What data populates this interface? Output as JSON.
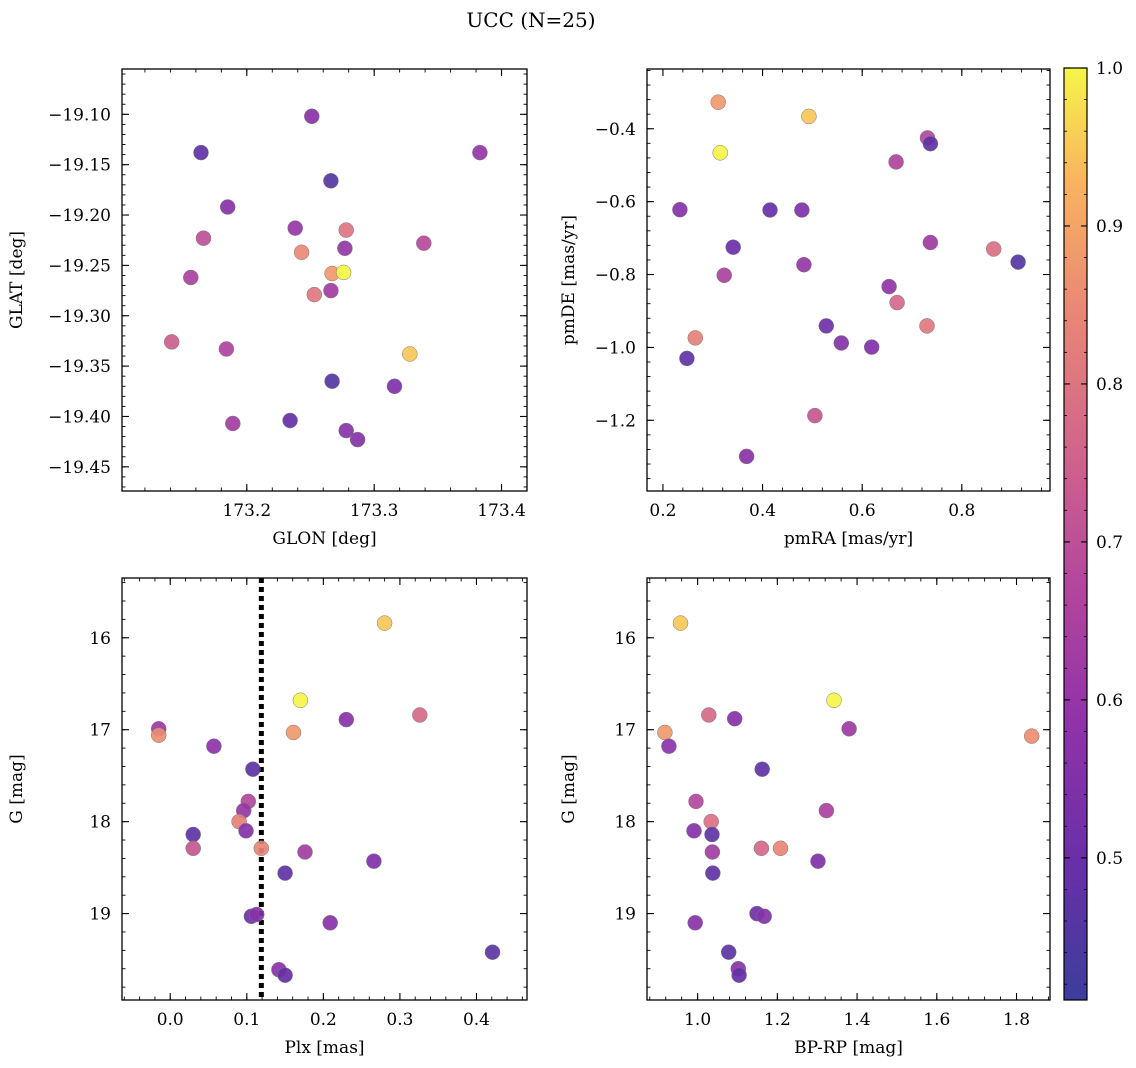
{
  "figure_title": "UCC (N=25)",
  "colorbar": {
    "ticks": [
      0.5,
      0.6,
      0.7,
      0.8,
      0.9,
      1.0
    ],
    "tick_labels": [
      "0.5",
      "0.6",
      "0.7",
      "0.8",
      "0.9",
      "1.0"
    ],
    "range": [
      0.41,
      1.0
    ],
    "colormap": "plasma"
  },
  "chart_data": [
    {
      "type": "scatter",
      "panel": "top-left",
      "xlabel": "GLON [deg]",
      "ylabel": "GLAT [deg]",
      "xlim": [
        173.102,
        173.42
      ],
      "ylim": [
        -19.474,
        -19.055
      ],
      "xticks": [
        173.2,
        173.3,
        173.4
      ],
      "xtick_labels": [
        "173.2",
        "173.3",
        "173.4"
      ],
      "yticks": [
        -19.1,
        -19.15,
        -19.2,
        -19.25,
        -19.3,
        -19.35,
        -19.4,
        -19.45
      ],
      "ytick_labels": [
        "−19.10",
        "−19.15",
        "−19.20",
        "−19.25",
        "−19.30",
        "−19.35",
        "−19.40",
        "−19.45"
      ],
      "points": [
        {
          "x": 173.251,
          "y": -19.102,
          "c": 0.57
        },
        {
          "x": 173.164,
          "y": -19.138,
          "c": 0.48
        },
        {
          "x": 173.383,
          "y": -19.138,
          "c": 0.6
        },
        {
          "x": 173.266,
          "y": -19.166,
          "c": 0.46
        },
        {
          "x": 173.185,
          "y": -19.192,
          "c": 0.57
        },
        {
          "x": 173.238,
          "y": -19.213,
          "c": 0.6
        },
        {
          "x": 173.278,
          "y": -19.215,
          "c": 0.8
        },
        {
          "x": 173.166,
          "y": -19.223,
          "c": 0.7
        },
        {
          "x": 173.339,
          "y": -19.228,
          "c": 0.68
        },
        {
          "x": 173.277,
          "y": -19.233,
          "c": 0.6
        },
        {
          "x": 173.243,
          "y": -19.237,
          "c": 0.85
        },
        {
          "x": 173.267,
          "y": -19.258,
          "c": 0.88
        },
        {
          "x": 173.276,
          "y": -19.257,
          "c": 1.0
        },
        {
          "x": 173.156,
          "y": -19.262,
          "c": 0.65
        },
        {
          "x": 173.253,
          "y": -19.279,
          "c": 0.81
        },
        {
          "x": 173.266,
          "y": -19.275,
          "c": 0.63
        },
        {
          "x": 173.141,
          "y": -19.326,
          "c": 0.74
        },
        {
          "x": 173.184,
          "y": -19.333,
          "c": 0.66
        },
        {
          "x": 173.328,
          "y": -19.338,
          "c": 0.95
        },
        {
          "x": 173.267,
          "y": -19.365,
          "c": 0.46
        },
        {
          "x": 173.316,
          "y": -19.37,
          "c": 0.55
        },
        {
          "x": 173.234,
          "y": -19.404,
          "c": 0.49
        },
        {
          "x": 173.189,
          "y": -19.407,
          "c": 0.63
        },
        {
          "x": 173.278,
          "y": -19.414,
          "c": 0.57
        },
        {
          "x": 173.287,
          "y": -19.423,
          "c": 0.56
        }
      ]
    },
    {
      "type": "scatter",
      "panel": "top-right",
      "xlabel": "pmRA [mas/yr]",
      "ylabel": "pmDE [mas/yr]",
      "xlim": [
        0.168,
        0.977
      ],
      "ylim": [
        -1.394,
        -0.236
      ],
      "xticks": [
        0.2,
        0.4,
        0.6,
        0.8
      ],
      "xtick_labels": [
        "0.2",
        "0.4",
        "0.6",
        "0.8"
      ],
      "yticks": [
        -0.4,
        -0.6,
        -0.8,
        -1.0,
        -1.2
      ],
      "ytick_labels": [
        "−0.4",
        "−0.6",
        "−0.8",
        "−1.0",
        "−1.2"
      ],
      "points": [
        {
          "x": 0.311,
          "y": -0.327,
          "c": 0.88
        },
        {
          "x": 0.493,
          "y": -0.366,
          "c": 0.95
        },
        {
          "x": 0.315,
          "y": -0.466,
          "c": 1.0
        },
        {
          "x": 0.731,
          "y": -0.425,
          "c": 0.67
        },
        {
          "x": 0.737,
          "y": -0.441,
          "c": 0.48
        },
        {
          "x": 0.668,
          "y": -0.491,
          "c": 0.66
        },
        {
          "x": 0.234,
          "y": -0.622,
          "c": 0.56
        },
        {
          "x": 0.415,
          "y": -0.623,
          "c": 0.49
        },
        {
          "x": 0.479,
          "y": -0.623,
          "c": 0.55
        },
        {
          "x": 0.341,
          "y": -0.725,
          "c": 0.5
        },
        {
          "x": 0.737,
          "y": -0.712,
          "c": 0.62
        },
        {
          "x": 0.864,
          "y": -0.73,
          "c": 0.79
        },
        {
          "x": 0.913,
          "y": -0.766,
          "c": 0.46
        },
        {
          "x": 0.483,
          "y": -0.773,
          "c": 0.6
        },
        {
          "x": 0.323,
          "y": -0.802,
          "c": 0.65
        },
        {
          "x": 0.654,
          "y": -0.833,
          "c": 0.59
        },
        {
          "x": 0.67,
          "y": -0.877,
          "c": 0.77
        },
        {
          "x": 0.73,
          "y": -0.941,
          "c": 0.81
        },
        {
          "x": 0.528,
          "y": -0.941,
          "c": 0.51
        },
        {
          "x": 0.265,
          "y": -0.974,
          "c": 0.83
        },
        {
          "x": 0.558,
          "y": -0.988,
          "c": 0.56
        },
        {
          "x": 0.619,
          "y": -0.999,
          "c": 0.55
        },
        {
          "x": 0.248,
          "y": -1.03,
          "c": 0.48
        },
        {
          "x": 0.505,
          "y": -1.187,
          "c": 0.72
        },
        {
          "x": 0.368,
          "y": -1.299,
          "c": 0.57
        }
      ]
    },
    {
      "type": "scatter",
      "panel": "bottom-left",
      "xlabel": "Plx [mas]",
      "ylabel": "G [mag]",
      "xlim": [
        -0.063,
        0.466
      ],
      "ylim": [
        19.94,
        15.35
      ],
      "xticks": [
        0.0,
        0.1,
        0.2,
        0.3,
        0.4
      ],
      "xtick_labels": [
        "0.0",
        "0.1",
        "0.2",
        "0.3",
        "0.4"
      ],
      "yticks": [
        16,
        17,
        18,
        19
      ],
      "ytick_labels": [
        "16",
        "17",
        "18",
        "19"
      ],
      "vline": {
        "x": 0.119,
        "style": "dotted"
      },
      "points": [
        {
          "x": 0.28,
          "y": 15.84,
          "c": 0.95
        },
        {
          "x": 0.17,
          "y": 16.68,
          "c": 1.0
        },
        {
          "x": -0.015,
          "y": 16.99,
          "c": 0.62
        },
        {
          "x": -0.015,
          "y": 17.06,
          "c": 0.86
        },
        {
          "x": 0.161,
          "y": 17.03,
          "c": 0.88
        },
        {
          "x": 0.326,
          "y": 16.84,
          "c": 0.77
        },
        {
          "x": 0.23,
          "y": 16.89,
          "c": 0.57
        },
        {
          "x": 0.057,
          "y": 17.18,
          "c": 0.58
        },
        {
          "x": 0.108,
          "y": 17.43,
          "c": 0.48
        },
        {
          "x": 0.102,
          "y": 17.78,
          "c": 0.67
        },
        {
          "x": 0.096,
          "y": 17.88,
          "c": 0.6
        },
        {
          "x": 0.09,
          "y": 18.0,
          "c": 0.83
        },
        {
          "x": 0.099,
          "y": 18.1,
          "c": 0.56
        },
        {
          "x": 0.03,
          "y": 18.14,
          "c": 0.48
        },
        {
          "x": 0.03,
          "y": 18.29,
          "c": 0.72
        },
        {
          "x": 0.119,
          "y": 18.29,
          "c": 0.84
        },
        {
          "x": 0.176,
          "y": 18.33,
          "c": 0.63
        },
        {
          "x": 0.266,
          "y": 18.43,
          "c": 0.55
        },
        {
          "x": 0.15,
          "y": 18.56,
          "c": 0.48
        },
        {
          "x": 0.106,
          "y": 19.03,
          "c": 0.51
        },
        {
          "x": 0.113,
          "y": 19.01,
          "c": 0.56
        },
        {
          "x": 0.209,
          "y": 19.1,
          "c": 0.57
        },
        {
          "x": 0.421,
          "y": 19.42,
          "c": 0.47
        },
        {
          "x": 0.142,
          "y": 19.61,
          "c": 0.57
        },
        {
          "x": 0.15,
          "y": 19.67,
          "c": 0.49
        }
      ]
    },
    {
      "type": "scatter",
      "panel": "bottom-right",
      "xlabel": "BP-RP [mag]",
      "ylabel": "G [mag]",
      "xlim": [
        0.873,
        1.884
      ],
      "ylim": [
        19.94,
        15.35
      ],
      "xticks": [
        1.0,
        1.2,
        1.4,
        1.6,
        1.8
      ],
      "xtick_labels": [
        "1.0",
        "1.2",
        "1.4",
        "1.6",
        "1.8"
      ],
      "yticks": [
        16,
        17,
        18,
        19
      ],
      "ytick_labels": [
        "16",
        "17",
        "18",
        "19"
      ],
      "points": [
        {
          "x": 0.957,
          "y": 15.84,
          "c": 0.95
        },
        {
          "x": 1.342,
          "y": 16.68,
          "c": 1.0
        },
        {
          "x": 0.918,
          "y": 17.03,
          "c": 0.88
        },
        {
          "x": 0.928,
          "y": 17.18,
          "c": 0.58
        },
        {
          "x": 1.028,
          "y": 16.84,
          "c": 0.77
        },
        {
          "x": 1.093,
          "y": 16.88,
          "c": 0.57
        },
        {
          "x": 1.38,
          "y": 16.99,
          "c": 0.62
        },
        {
          "x": 1.838,
          "y": 17.07,
          "c": 0.86
        },
        {
          "x": 1.162,
          "y": 17.43,
          "c": 0.48
        },
        {
          "x": 0.996,
          "y": 17.78,
          "c": 0.67
        },
        {
          "x": 1.323,
          "y": 17.88,
          "c": 0.65
        },
        {
          "x": 1.034,
          "y": 18.0,
          "c": 0.79
        },
        {
          "x": 0.991,
          "y": 18.1,
          "c": 0.56
        },
        {
          "x": 1.036,
          "y": 18.14,
          "c": 0.48
        },
        {
          "x": 1.16,
          "y": 18.29,
          "c": 0.77
        },
        {
          "x": 1.208,
          "y": 18.29,
          "c": 0.84
        },
        {
          "x": 1.037,
          "y": 18.33,
          "c": 0.63
        },
        {
          "x": 1.302,
          "y": 18.43,
          "c": 0.55
        },
        {
          "x": 1.038,
          "y": 18.56,
          "c": 0.48
        },
        {
          "x": 1.149,
          "y": 19.0,
          "c": 0.51
        },
        {
          "x": 1.167,
          "y": 19.03,
          "c": 0.56
        },
        {
          "x": 0.994,
          "y": 19.1,
          "c": 0.57
        },
        {
          "x": 1.078,
          "y": 19.42,
          "c": 0.47
        },
        {
          "x": 1.102,
          "y": 19.6,
          "c": 0.57
        },
        {
          "x": 1.104,
          "y": 19.67,
          "c": 0.49
        }
      ]
    }
  ]
}
